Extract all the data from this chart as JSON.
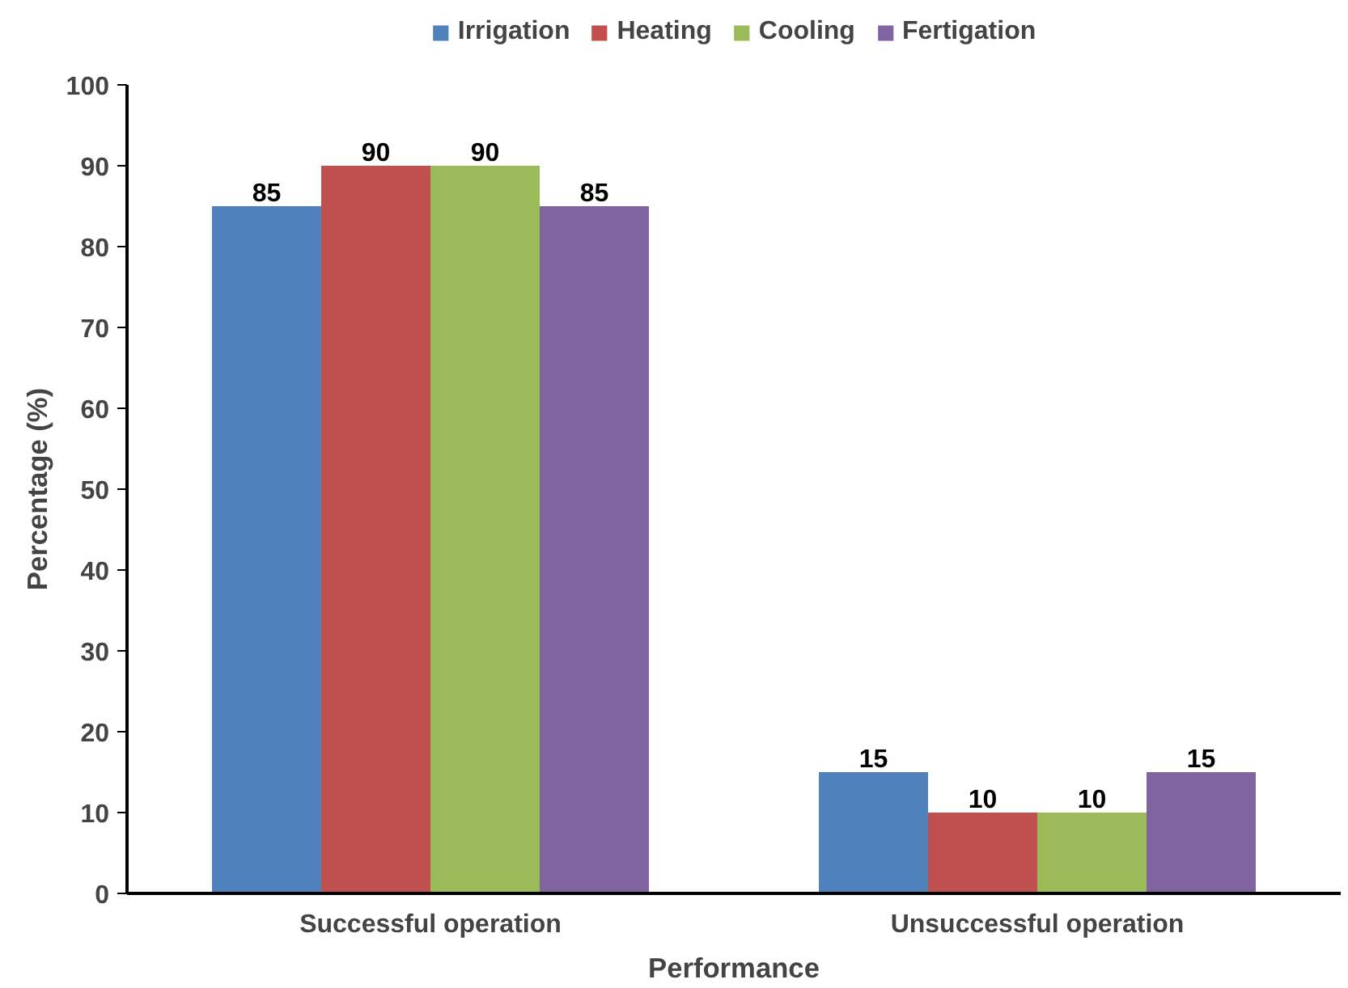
{
  "chart_data": {
    "type": "bar",
    "categories": [
      "Successful operation",
      "Unsuccessful operation"
    ],
    "series": [
      {
        "name": "Irrigation",
        "color": "#4f81bd",
        "values": [
          85,
          15
        ]
      },
      {
        "name": "Heating",
        "color": "#c0504d",
        "values": [
          90,
          10
        ]
      },
      {
        "name": "Cooling",
        "color": "#9bbb59",
        "values": [
          90,
          10
        ]
      },
      {
        "name": "Fertigation",
        "color": "#8064a2",
        "values": [
          85,
          15
        ]
      }
    ],
    "xlabel": "Performance",
    "ylabel": "Percentage (%)",
    "ylim": [
      0,
      100
    ],
    "yticks": [
      0,
      10,
      20,
      30,
      40,
      50,
      60,
      70,
      80,
      90,
      100
    ],
    "grid": false,
    "legend": "top",
    "data_labels": true
  }
}
